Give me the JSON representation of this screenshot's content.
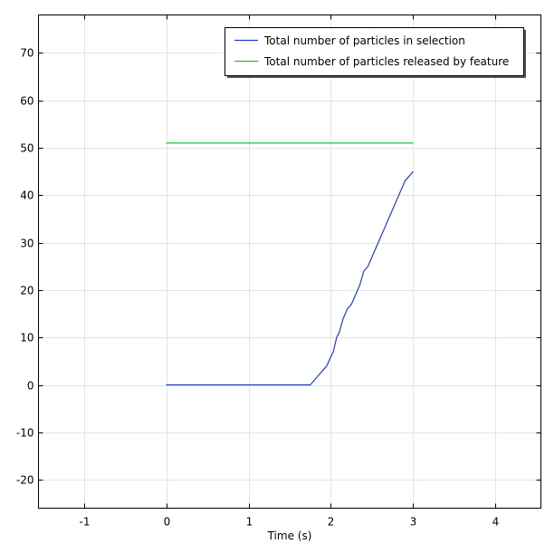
{
  "chart_data": {
    "type": "line",
    "title": "",
    "xlabel": "Time (s)",
    "ylabel": "",
    "xlim": [
      -1.55,
      4.55
    ],
    "ylim": [
      -26,
      78
    ],
    "x_ticks": [
      -1,
      0,
      1,
      2,
      3,
      4
    ],
    "y_ticks": [
      -20,
      -10,
      0,
      10,
      20,
      30,
      40,
      50,
      60,
      70
    ],
    "grid": true,
    "legend_position": "top-right",
    "series": [
      {
        "name": "Total number of particles in selection",
        "color": "#1f3fd6",
        "x": [
          0,
          1.75,
          1.8,
          1.85,
          1.9,
          1.95,
          2.0,
          2.03,
          2.07,
          2.1,
          2.15,
          2.2,
          2.25,
          2.3,
          2.35,
          2.4,
          2.45,
          2.5,
          2.6,
          2.7,
          2.8,
          2.9,
          3.0
        ],
        "y": [
          0,
          0,
          1,
          2,
          3,
          4,
          6,
          7,
          10,
          11,
          14,
          16,
          17,
          19,
          21,
          24,
          25,
          27,
          31,
          35,
          39,
          43,
          45
        ]
      },
      {
        "name": "Total number of particles released by feature",
        "color": "#1fbf3f",
        "x": [
          0,
          3
        ],
        "y": [
          51,
          51
        ]
      }
    ]
  }
}
